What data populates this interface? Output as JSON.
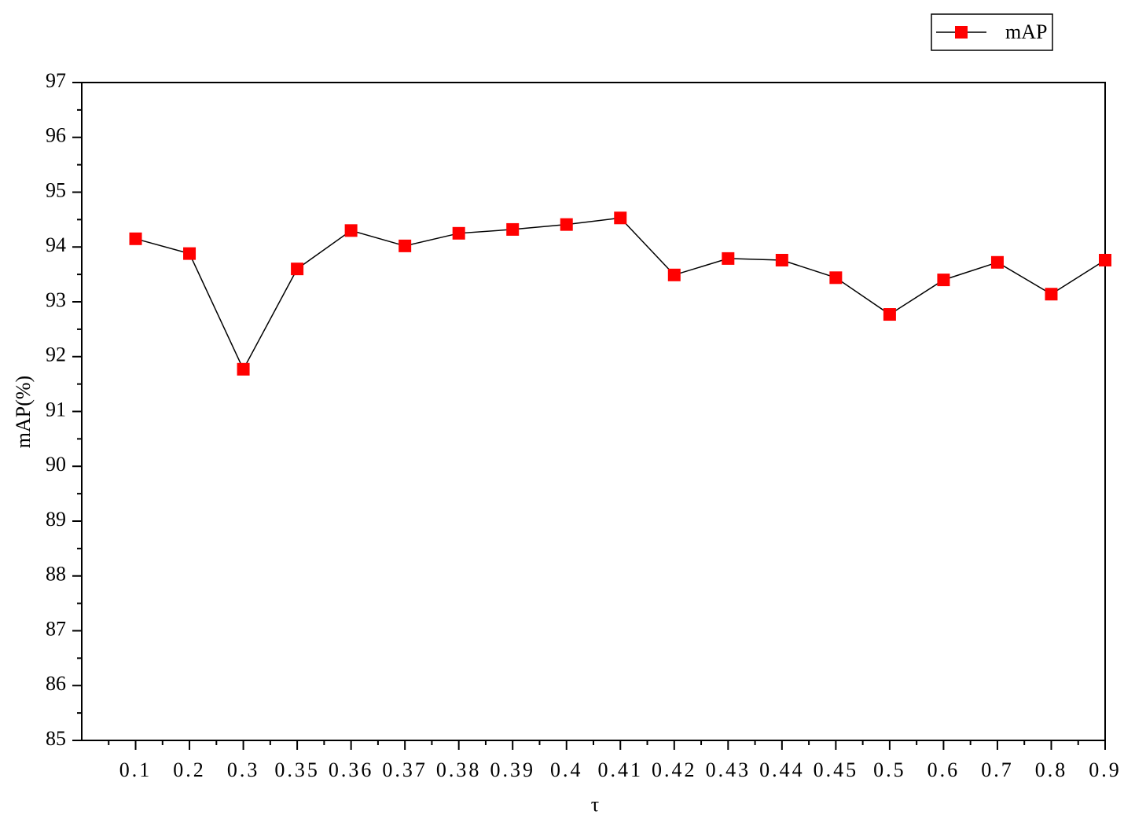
{
  "chart_data": {
    "type": "line",
    "x_label": "τ",
    "y_label": "mAP(%)",
    "categories": [
      "0.1",
      "0.2",
      "0.3",
      "0.35",
      "0.36",
      "0.37",
      "0.38",
      "0.39",
      "0.4",
      "0.41",
      "0.42",
      "0.43",
      "0.44",
      "0.45",
      "0.5",
      "0.6",
      "0.7",
      "0.8",
      "0.9"
    ],
    "series": [
      {
        "name": "mAP",
        "color": "#ff0000",
        "line_color": "#000000",
        "values": [
          94.15,
          93.88,
          91.77,
          93.6,
          94.3,
          94.02,
          94.25,
          94.32,
          94.41,
          94.53,
          93.49,
          93.79,
          93.76,
          93.44,
          92.77,
          93.4,
          93.72,
          93.14,
          93.76
        ]
      }
    ],
    "ylim": [
      85,
      97
    ],
    "yticks": [
      85,
      86,
      87,
      88,
      89,
      90,
      91,
      92,
      93,
      94,
      95,
      96,
      97
    ],
    "grid": false,
    "legend": "top-right"
  }
}
